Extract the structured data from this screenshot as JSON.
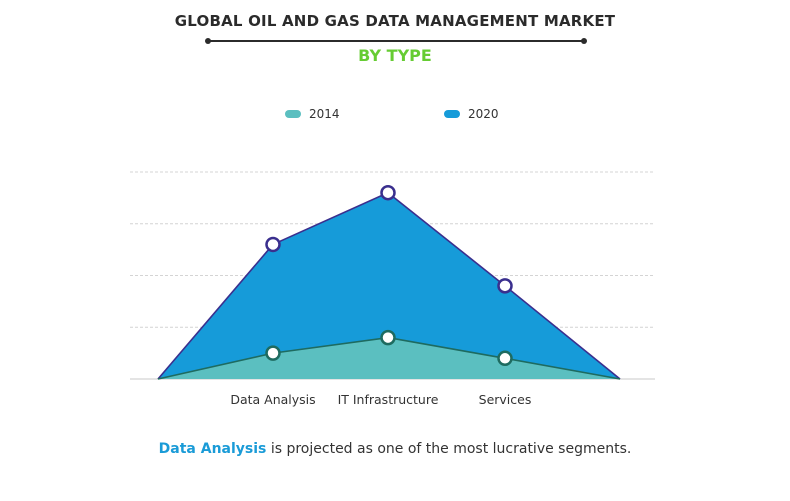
{
  "title": "GLOBAL OIL AND GAS DATA MANAGEMENT MARKET",
  "subtitle": "BY TYPE",
  "footer": {
    "highlight": "Data Analysis",
    "text": " is projected as one of the most lucrative segments."
  },
  "colors": {
    "series_2014": "#5bbfc0",
    "series_2020": "#169bd9",
    "outline_2014": "#1e6b60",
    "outline_2020": "#3a2f8e",
    "accent_green": "#66cc33",
    "footer_highlight": "#1a9bd7"
  },
  "chart_data": {
    "type": "area",
    "categories": [
      "Data Analysis",
      "IT Infrastructure",
      "Services"
    ],
    "series": [
      {
        "name": "2014",
        "values": [
          0.5,
          0.8,
          0.4
        ]
      },
      {
        "name": "2020",
        "values": [
          2.6,
          3.6,
          1.8
        ]
      }
    ],
    "ylim": [
      0,
      4
    ],
    "grid": true,
    "legend": "top-center",
    "title": "GLOBAL OIL AND GAS DATA MANAGEMENT MARKET",
    "subtitle": "BY TYPE",
    "xlabel": "",
    "ylabel": ""
  }
}
